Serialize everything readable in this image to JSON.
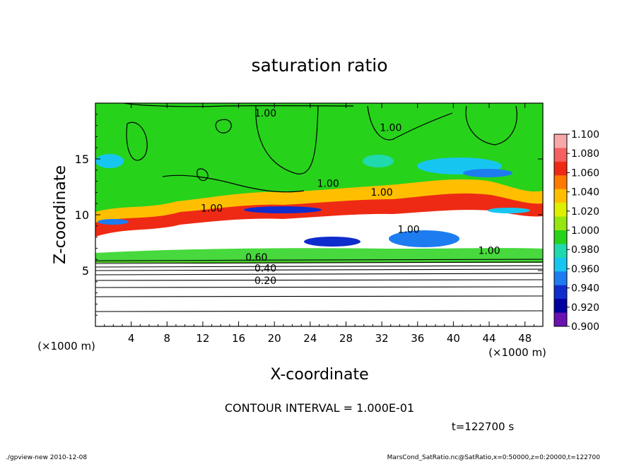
{
  "chart_data": {
    "type": "heatmap",
    "title": "saturation ratio",
    "xlabel": "X-coordinate",
    "ylabel": "Z-coordinate",
    "x_units": "(×1000 m)",
    "z_units": "(×1000 m)",
    "xlim": [
      0,
      50
    ],
    "ylim": [
      0,
      20
    ],
    "x_ticks": [
      "4",
      "8",
      "12",
      "16",
      "20",
      "24",
      "28",
      "32",
      "36",
      "40",
      "44",
      "48"
    ],
    "x_tick_values": [
      4,
      8,
      12,
      16,
      20,
      24,
      28,
      32,
      36,
      40,
      44,
      48
    ],
    "y_ticks": [
      "5",
      "10",
      "15"
    ],
    "y_tick_values": [
      5,
      10,
      15
    ],
    "colorbar": {
      "labels": [
        "1.100",
        "1.080",
        "1.060",
        "1.040",
        "1.020",
        "1.000",
        "0.980",
        "0.960",
        "0.940",
        "0.920",
        "0.900"
      ],
      "values": [
        1.1,
        1.08,
        1.06,
        1.04,
        1.02,
        1.0,
        0.98,
        0.96,
        0.94,
        0.92,
        0.9
      ],
      "colors": [
        "#f7a8a8",
        "#f56060",
        "#ee2a14",
        "#ff7a00",
        "#ffbf00",
        "#dfef00",
        "#96e60f",
        "#27d21b",
        "#20d9ad",
        "#17c6f0",
        "#1d7cf0",
        "#0f2ccd",
        "#00009e",
        "#6a11b0"
      ]
    },
    "contour_labels": [
      "1.00",
      "1.00",
      "1.00",
      "1.00",
      "1.00",
      "1.00",
      "1.00",
      "0.60",
      "0.40",
      "0.20"
    ],
    "contour_levels_below_cloud": [
      0.1,
      0.2,
      0.3,
      0.4,
      0.5,
      0.6,
      0.7,
      0.8,
      0.9
    ],
    "contour_interval_text": "CONTOUR INTERVAL = 1.000E-01",
    "time_text": "t=122700 s"
  },
  "footer": {
    "left": "./gpview-new   2010-12-08",
    "right": "MarsCond_SatRatio.nc@SatRatio,x=0:50000,z=0:20000,t=122700"
  }
}
